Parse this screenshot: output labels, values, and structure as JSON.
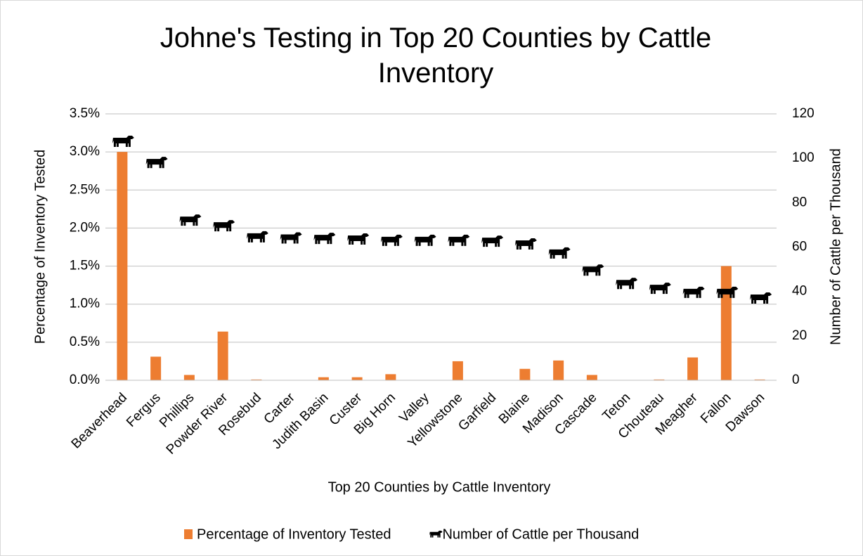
{
  "chart_data": {
    "type": "bar_scatter",
    "title": "Johne's Testing in Top 20 Counties by Cattle Inventory",
    "x_label": "Top 20 Counties by Cattle Inventory",
    "y_label": "Percentage of Inventory Tested",
    "y2_label": "Number of Cattle per Thousand",
    "categories": [
      "Beaverhead",
      "Fergus",
      "Phillips",
      "Powder River",
      "Rosebud",
      "Carter",
      "Judith Basin",
      "Custer",
      "Big Horn",
      "Valley",
      "Yellowstone",
      "Garfield",
      "Blaine",
      "Madison",
      "Cascade",
      "Teton",
      "Chouteau",
      "Meagher",
      "Fallon",
      "Dawson"
    ],
    "series": [
      {
        "name": "Percentage of Inventory Tested",
        "color": "#ed7d31",
        "values": [
          3.0,
          0.31,
          0.07,
          0.64,
          0.01,
          0,
          0.04,
          0.04,
          0.08,
          0,
          0.25,
          0,
          0.15,
          0.26,
          0.07,
          0,
          0.01,
          0.3,
          1.5,
          0.01
        ]
      },
      {
        "name": "Number of Cattle per Thousand",
        "color": "#000000",
        "axis": "y2",
        "values": [
          107,
          97.5,
          71.5,
          69,
          64,
          63.5,
          63.3,
          63,
          62.4,
          62.4,
          62.4,
          62,
          60.8,
          56.7,
          49,
          43,
          40.8,
          39,
          39,
          36.4
        ]
      }
    ],
    "ylim": [
      0,
      3.5
    ],
    "yticks": [
      {
        "value": 0,
        "label": "0.0%"
      },
      {
        "value": 0.5,
        "label": "0.5%"
      },
      {
        "value": 1.0,
        "label": "1.0%"
      },
      {
        "value": 1.5,
        "label": "1.5%"
      },
      {
        "value": 2.0,
        "label": "2.0%"
      },
      {
        "value": 2.5,
        "label": "2.5%"
      },
      {
        "value": 3.0,
        "label": "3.0%"
      },
      {
        "value": 3.5,
        "label": "3.5%"
      }
    ],
    "y2lim": [
      0,
      120
    ],
    "y2ticks": [
      0,
      20,
      40,
      60,
      80,
      100,
      120
    ],
    "grid": true,
    "legend": "bottom"
  }
}
